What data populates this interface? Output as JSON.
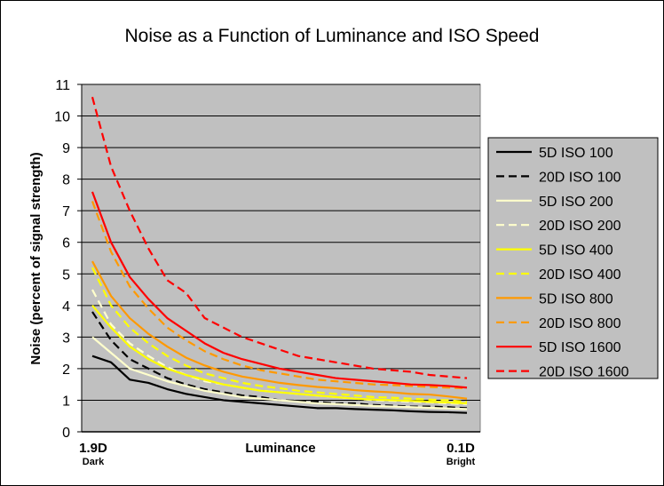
{
  "chart_data": {
    "type": "line",
    "title": "Noise as a Function of Luminance and ISO Speed",
    "ylabel": "Noise (percent of signal strength)",
    "xlabel": "Luminance",
    "x_left_label": "1.9D",
    "x_left_sublabel": "Dark",
    "x_right_label": "0.1D",
    "x_right_sublabel": "Bright",
    "ylim": [
      0,
      11
    ],
    "yticks": [
      "0",
      "1",
      "2",
      "3",
      "4",
      "5",
      "6",
      "7",
      "8",
      "9",
      "10",
      "11"
    ],
    "x": [
      0,
      0.05,
      0.1,
      0.15,
      0.2,
      0.25,
      0.3,
      0.35,
      0.4,
      0.45,
      0.5,
      0.55,
      0.6,
      0.65,
      0.7,
      0.75,
      0.8,
      0.85,
      0.9,
      0.95,
      1
    ],
    "grid": true,
    "plot_background": "#c0c0c0",
    "legend_position": "right",
    "series": [
      {
        "name": "5D ISO 100",
        "color": "#000000",
        "dash": "solid",
        "values": [
          2.4,
          2.2,
          1.65,
          1.55,
          1.35,
          1.2,
          1.1,
          1.0,
          0.95,
          0.9,
          0.85,
          0.8,
          0.75,
          0.75,
          0.72,
          0.7,
          0.68,
          0.65,
          0.63,
          0.62,
          0.6
        ]
      },
      {
        "name": "20D ISO 100",
        "color": "#000000",
        "dash": "dashed",
        "values": [
          3.8,
          2.9,
          2.3,
          2.0,
          1.7,
          1.5,
          1.35,
          1.25,
          1.15,
          1.1,
          1.0,
          0.98,
          0.95,
          0.9,
          0.9,
          0.85,
          0.83,
          0.8,
          0.8,
          0.78,
          0.75
        ]
      },
      {
        "name": "5D ISO 200",
        "color": "#ffffcc",
        "dash": "solid",
        "values": [
          3.0,
          2.5,
          2.0,
          1.8,
          1.6,
          1.45,
          1.3,
          1.2,
          1.1,
          1.05,
          1.0,
          0.95,
          0.9,
          0.88,
          0.85,
          0.82,
          0.8,
          0.78,
          0.76,
          0.74,
          0.72
        ]
      },
      {
        "name": "20D ISO 200",
        "color": "#ffffcc",
        "dash": "dashed",
        "values": [
          4.5,
          3.4,
          2.8,
          2.4,
          2.05,
          1.8,
          1.6,
          1.5,
          1.4,
          1.3,
          1.25,
          1.2,
          1.15,
          1.1,
          1.05,
          1.0,
          0.98,
          0.95,
          0.93,
          0.9,
          0.88
        ]
      },
      {
        "name": "5D ISO 400",
        "color": "#ffff00",
        "dash": "solid",
        "values": [
          4.0,
          3.3,
          2.7,
          2.3,
          2.0,
          1.8,
          1.65,
          1.5,
          1.4,
          1.3,
          1.25,
          1.2,
          1.15,
          1.1,
          1.05,
          1.02,
          1.0,
          0.98,
          0.95,
          0.93,
          0.9
        ]
      },
      {
        "name": "20D ISO 400",
        "color": "#ffff00",
        "dash": "dashed",
        "values": [
          5.2,
          4.0,
          3.3,
          2.8,
          2.4,
          2.1,
          1.85,
          1.7,
          1.55,
          1.45,
          1.38,
          1.3,
          1.25,
          1.2,
          1.15,
          1.1,
          1.08,
          1.05,
          1.02,
          1.0,
          0.95
        ]
      },
      {
        "name": "5D ISO 800",
        "color": "#ff9900",
        "dash": "solid",
        "values": [
          5.4,
          4.3,
          3.6,
          3.1,
          2.7,
          2.35,
          2.1,
          1.9,
          1.75,
          1.65,
          1.55,
          1.48,
          1.42,
          1.38,
          1.32,
          1.28,
          1.25,
          1.2,
          1.18,
          1.12,
          1.05
        ]
      },
      {
        "name": "20D ISO 800",
        "color": "#ff9900",
        "dash": "dashed",
        "values": [
          7.3,
          5.7,
          4.6,
          3.9,
          3.3,
          2.9,
          2.55,
          2.3,
          2.1,
          1.95,
          1.85,
          1.75,
          1.65,
          1.6,
          1.55,
          1.5,
          1.48,
          1.45,
          1.42,
          1.4,
          1.38
        ]
      },
      {
        "name": "5D ISO 1600",
        "color": "#ff0000",
        "dash": "solid",
        "values": [
          7.6,
          6.0,
          4.9,
          4.2,
          3.6,
          3.2,
          2.8,
          2.5,
          2.3,
          2.15,
          2.0,
          1.9,
          1.8,
          1.7,
          1.65,
          1.6,
          1.55,
          1.5,
          1.48,
          1.45,
          1.4
        ]
      },
      {
        "name": "20D ISO 1600",
        "color": "#ff0000",
        "dash": "dashed",
        "values": [
          10.6,
          8.4,
          7.0,
          5.8,
          4.8,
          4.4,
          3.6,
          3.3,
          3.0,
          2.8,
          2.6,
          2.4,
          2.3,
          2.2,
          2.1,
          2.0,
          1.95,
          1.9,
          1.8,
          1.75,
          1.7
        ]
      }
    ]
  }
}
